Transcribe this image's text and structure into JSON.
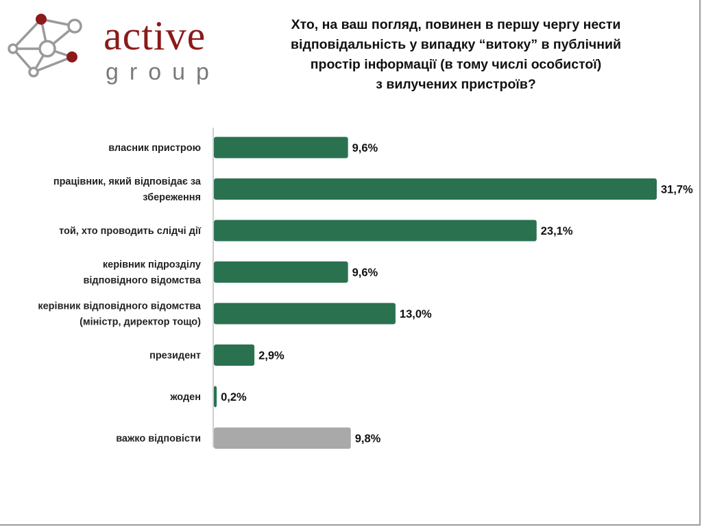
{
  "logo": {
    "word": "active",
    "sub": "group"
  },
  "colors": {
    "bar": "#2a7150",
    "bar_highlight": "#a9a9a9",
    "logo_red": "#8b1a1a",
    "logo_gray": "#7a7a7a"
  },
  "chart_data": {
    "type": "bar",
    "orientation": "horizontal",
    "title_lines": [
      "Хто, на ваш погляд, повинен в першу чергу нести",
      "відповідальність у випадку “витоку” в публічний",
      "простір інформації (в тому числі особистої)",
      "з вилучених пристроїв?"
    ],
    "categories": [
      [
        "власник пристрою"
      ],
      [
        "працівник, який відповідає за",
        "збереження"
      ],
      [
        "той, хто проводить слідчі дії"
      ],
      [
        "керівник підрозділу",
        "відповідного відомства"
      ],
      [
        "керівник відповідного відомства",
        "(міністр, директор тощо)"
      ],
      [
        "президент"
      ],
      [
        "жоден"
      ],
      [
        "важко відповісти"
      ]
    ],
    "values": [
      9.6,
      31.7,
      23.1,
      9.6,
      13.0,
      2.9,
      0.2,
      9.8
    ],
    "value_labels": [
      "9,6%",
      "31,7%",
      "23,1%",
      "9,6%",
      "13,0%",
      "2,9%",
      "0,2%",
      "9,8%"
    ],
    "highlight_index": 7,
    "xlim": [
      0,
      31.7
    ],
    "grid": false,
    "legend": "none"
  }
}
